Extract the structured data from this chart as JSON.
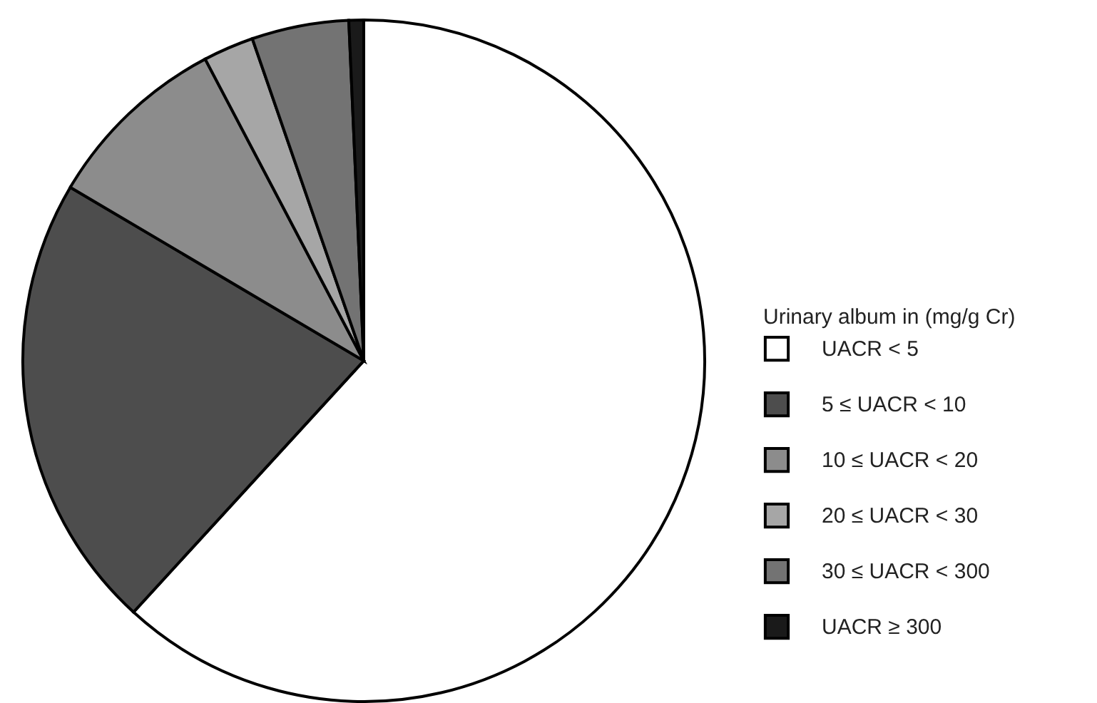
{
  "chart_data": {
    "type": "pie",
    "legend_title": "Urinary album in (mg/g Cr)",
    "categories": [
      "UACR < 5",
      "5 ≤ UACR < 10",
      "10 ≤ UACR < 20",
      "20 ≤ UACR < 30",
      "30 ≤ UACR < 300",
      "UACR ≥ 300"
    ],
    "values": [
      61.8,
      21.7,
      8.8,
      2.4,
      4.6,
      0.7
    ],
    "colors": [
      "#ffffff",
      "#4d4d4d",
      "#8c8c8c",
      "#a6a6a6",
      "#737373",
      "#1a1a1a"
    ],
    "legend": "right"
  }
}
